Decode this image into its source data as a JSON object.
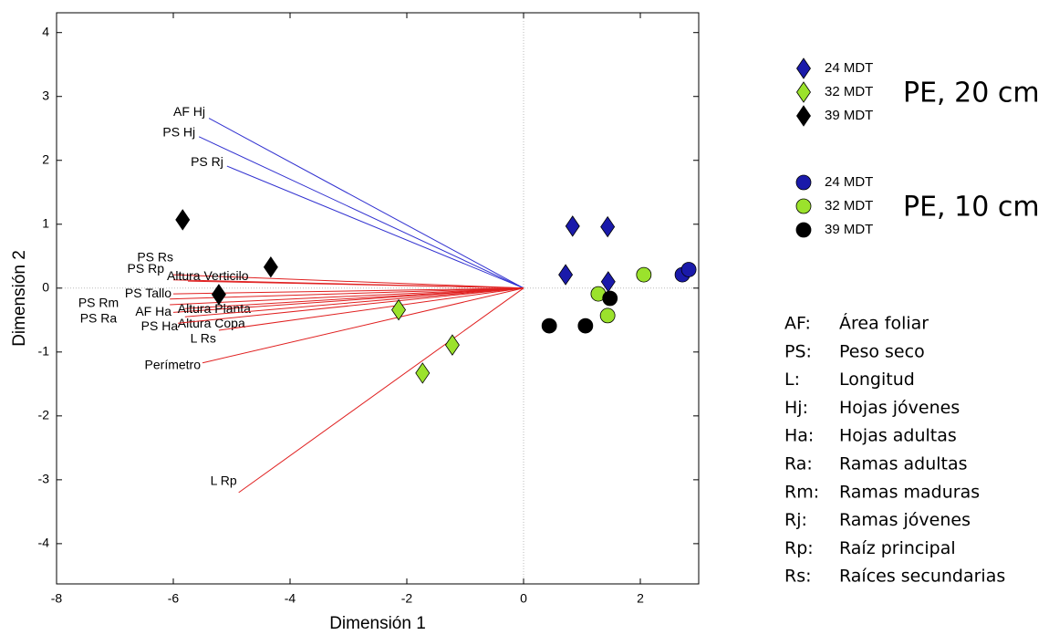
{
  "chart_data": {
    "type": "biplot",
    "xlabel": "Dimensión 1",
    "ylabel": "Dimensión 2",
    "xlim": [
      -8,
      3
    ],
    "ylim": [
      -4.63,
      4.31
    ],
    "xticks": [
      -8,
      -6,
      -4,
      -2,
      0,
      2
    ],
    "yticks": [
      -4,
      -3,
      -2,
      -1,
      0,
      1,
      2,
      3,
      4
    ],
    "zero_lines": true,
    "groups": [
      {
        "title": "PE, 20 cm",
        "marker": "diamond",
        "series": [
          {
            "name": "24 MDT",
            "color": "#1a1aaa",
            "x": [
              0.84,
              1.44,
              0.72,
              1.45
            ],
            "y": [
              0.97,
              0.96,
              0.21,
              0.1
            ]
          },
          {
            "name": "32 MDT",
            "color": "#9be22c",
            "x": [
              -2.14,
              -1.22,
              -1.73
            ],
            "y": [
              -0.34,
              -0.89,
              -1.33
            ]
          },
          {
            "name": "39 MDT",
            "color": "#000000",
            "x": [
              -5.84,
              -4.33,
              -5.22
            ],
            "y": [
              1.07,
              0.33,
              -0.1
            ]
          }
        ]
      },
      {
        "title": "PE, 10 cm",
        "marker": "circle",
        "series": [
          {
            "name": "24 MDT",
            "color": "#1a1aaa",
            "x": [
              2.72,
              2.83
            ],
            "y": [
              0.21,
              0.29
            ]
          },
          {
            "name": "32 MDT",
            "color": "#9be22c",
            "x": [
              2.06,
              1.28,
              1.44
            ],
            "y": [
              0.21,
              -0.09,
              -0.43
            ]
          },
          {
            "name": "39 MDT",
            "color": "#000000",
            "x": [
              0.44,
              1.06,
              1.48
            ],
            "y": [
              -0.59,
              -0.59,
              -0.16
            ]
          }
        ]
      }
    ],
    "vectors": [
      {
        "label": "AF Hj",
        "x": -5.39,
        "y": 2.66,
        "color": "#3030d0"
      },
      {
        "label": "PS Hj",
        "x": -5.56,
        "y": 2.37,
        "color": "#3030d0"
      },
      {
        "label": "PS Rj",
        "x": -5.08,
        "y": 1.91,
        "color": "#3030d0"
      },
      {
        "label": "PS Rs",
        "x": -6.0,
        "y": 0.13,
        "color": "#e02020"
      },
      {
        "label": "PS Rp",
        "x": -6.0,
        "y": 0.21,
        "color": "#e02020"
      },
      {
        "label": "Altura Verticilo",
        "x": -5.75,
        "y": 0.11,
        "color": "#e02020"
      },
      {
        "label": "PS Tallo",
        "x": -6.0,
        "y": -0.09,
        "color": "#e02020"
      },
      {
        "label": "PS Rm",
        "x": -6.06,
        "y": -0.17,
        "color": "#e02020"
      },
      {
        "label": "PS Ra",
        "x": -6.06,
        "y": -0.26,
        "color": "#e02020"
      },
      {
        "label": "AF Ha",
        "x": -6.0,
        "y": -0.38,
        "color": "#e02020"
      },
      {
        "label": "Altura Planta",
        "x": -5.8,
        "y": -0.32,
        "color": "#e02020"
      },
      {
        "label": "Altura Copa",
        "x": -5.8,
        "y": -0.45,
        "color": "#e02020"
      },
      {
        "label": "PS Ha",
        "x": -5.92,
        "y": -0.55,
        "color": "#e02020"
      },
      {
        "label": "L Rs",
        "x": -5.22,
        "y": -0.66,
        "color": "#e02020"
      },
      {
        "label": "Perímetro",
        "x": -5.5,
        "y": -1.17,
        "color": "#e02020"
      },
      {
        "label": "L Rp",
        "x": -4.88,
        "y": -3.2,
        "color": "#e02020"
      }
    ],
    "glossary": [
      {
        "abbr": "AF:",
        "meaning": "Área foliar"
      },
      {
        "abbr": "PS:",
        "meaning": "Peso seco"
      },
      {
        "abbr": "L:",
        "meaning": "Longitud"
      },
      {
        "abbr": "Hj:",
        "meaning": "Hojas jóvenes"
      },
      {
        "abbr": "Ha:",
        "meaning": "Hojas adultas"
      },
      {
        "abbr": "Ra:",
        "meaning": "Ramas adultas"
      },
      {
        "abbr": "Rm:",
        "meaning": "Ramas maduras"
      },
      {
        "abbr": "Rj:",
        "meaning": "Ramas jóvenes"
      },
      {
        "abbr": "Rp:",
        "meaning": "Raíz principal"
      },
      {
        "abbr": "Rs:",
        "meaning": "Raíces secundarias"
      }
    ]
  }
}
